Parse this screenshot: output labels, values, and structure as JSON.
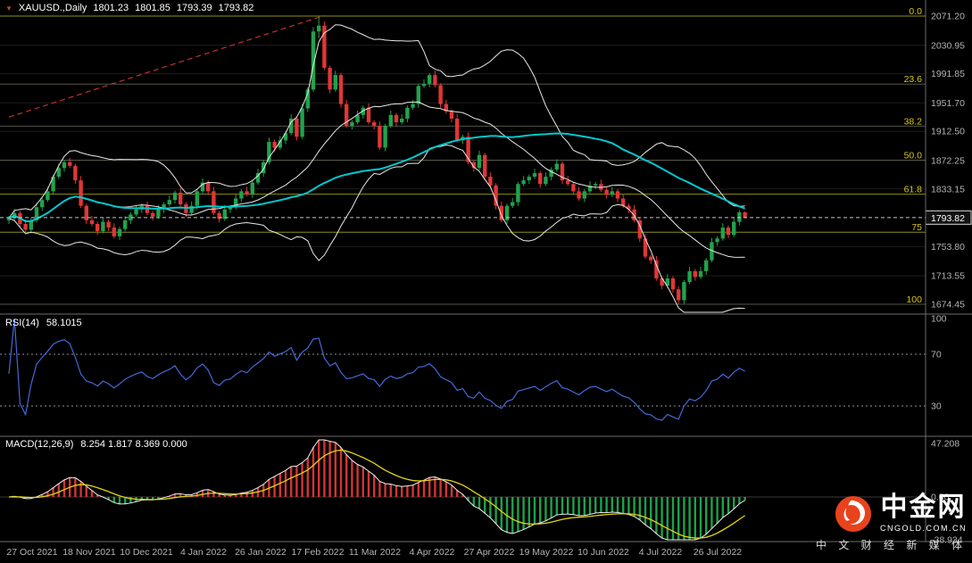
{
  "colors": {
    "background": "#000000",
    "candle_up": "#21a24b",
    "candle_down": "#e03636",
    "bollinger": "#e8e8e8",
    "ma_cyan": "#00c9cf",
    "rsi": "#4468d8",
    "macd_line": "#f0f0f0",
    "macd_signal": "#e3d411",
    "hist_up": "#d23535",
    "hist_down": "#1ea04a",
    "fib_label": "#d8c416",
    "axis_text": "#b4b4b4"
  },
  "header": {
    "symbol_period": "XAUUSD.,Daily",
    "open": "1801.23",
    "high": "1801.85",
    "low": "1793.39",
    "close": "1793.82"
  },
  "main_chart": {
    "price_axis_labels": [
      {
        "text": "2071.20",
        "price": 2071.2
      },
      {
        "text": "2030.95",
        "price": 2030.95
      },
      {
        "text": "1991.85",
        "price": 1991.85
      },
      {
        "text": "1951.70",
        "price": 1951.7
      },
      {
        "text": "1912.50",
        "price": 1912.5
      },
      {
        "text": "1872.25",
        "price": 1872.25
      },
      {
        "text": "1833.15",
        "price": 1833.15
      },
      {
        "text": "1753.80",
        "price": 1753.8
      },
      {
        "text": "1713.55",
        "price": 1713.55
      },
      {
        "text": "1674.45",
        "price": 1674.45
      }
    ],
    "current_price": {
      "text": "1793.82",
      "price": 1793.82
    },
    "fib_levels": [
      {
        "label": "0.0",
        "price": 2071.2,
        "emphasis": "yellow"
      },
      {
        "label": "23.6",
        "price": 1977.57,
        "emphasis": "gray"
      },
      {
        "label": "38.2",
        "price": 1919.64,
        "emphasis": "gray"
      },
      {
        "label": "50.0",
        "price": 1872.83,
        "emphasis": "gray"
      },
      {
        "label": "61.8",
        "price": 1826.01,
        "emphasis": "yellow"
      },
      {
        "label": "75",
        "price": 1773.64,
        "emphasis": "yellow"
      },
      {
        "label": "100",
        "price": 1674.45,
        "emphasis": "gray"
      }
    ]
  },
  "rsi": {
    "label": "RSI(14)",
    "value": "58.1015",
    "axis": [
      {
        "text": "100",
        "value": 100,
        "dashed": false
      },
      {
        "text": "70",
        "value": 70,
        "dashed": true
      },
      {
        "text": "30",
        "value": 30,
        "dashed": true
      }
    ]
  },
  "macd": {
    "label": "MACD(12,26,9)",
    "values": "8.254 1.817 8.369 0.000",
    "axis": [
      {
        "text": "47.208",
        "value": 47.208
      },
      {
        "text": "0.00",
        "value": 0
      },
      {
        "text": "-38.934",
        "value": -38.934
      }
    ]
  },
  "date_axis": [
    "27 Oct 2021",
    "18 Nov 2021",
    "10 Dec 2021",
    "4 Jan 2022",
    "26 Jan 2022",
    "17 Feb 2022",
    "11 Mar 2022",
    "4 Apr 2022",
    "27 Apr 2022",
    "19 May 2022",
    "10 Jun 2022",
    "4 Jul 2022",
    "26 Jul 2022"
  ],
  "watermark": {
    "brand": "中金网",
    "domain": "CNGOLD.COM.CN",
    "tagline": "中 文 财 经 新 媒 体"
  },
  "chart_data": {
    "type": "candlestick",
    "symbol": "XAUUSD",
    "timeframe": "Daily",
    "title": "XAUUSD Daily candlestick chart with Bollinger Bands, moving average, Fibonacci retracement, RSI(14) and MACD(12,26,9)",
    "last_ohlc": {
      "open": 1801.23,
      "high": 1801.85,
      "low": 1793.39,
      "close": 1793.82
    },
    "price_range_shown": [
      1674.45,
      2071.2
    ],
    "fibonacci": {
      "high": 2071.2,
      "low": 1674.45,
      "levels_percent": [
        0,
        23.6,
        38.2,
        50,
        61.8,
        75,
        100
      ]
    },
    "trendline": {
      "from_index": 0,
      "from_price": 1932,
      "to_index": 57,
      "to_price": 2072,
      "style": "dashed",
      "color": "#c03030"
    },
    "indicators": [
      {
        "name": "Bollinger Bands",
        "period": 20,
        "deviation": 2
      },
      {
        "name": "Moving Average",
        "period": 55
      },
      {
        "name": "RSI",
        "period": 14,
        "current": 58.1015
      },
      {
        "name": "MACD",
        "fast": 12,
        "slow": 26,
        "signal": 9,
        "current": [
          8.254,
          1.817,
          8.369,
          0.0
        ]
      }
    ],
    "ohlc": [
      [
        1790,
        1796,
        1785,
        1793
      ],
      [
        1793,
        1806,
        1790,
        1800
      ],
      [
        1800,
        1803,
        1780,
        1785
      ],
      [
        1785,
        1791,
        1774,
        1777
      ],
      [
        1777,
        1793,
        1772,
        1790
      ],
      [
        1790,
        1814,
        1787,
        1808
      ],
      [
        1808,
        1821,
        1803,
        1818
      ],
      [
        1818,
        1836,
        1815,
        1830
      ],
      [
        1830,
        1853,
        1825,
        1850
      ],
      [
        1850,
        1868,
        1847,
        1862
      ],
      [
        1862,
        1873,
        1857,
        1870
      ],
      [
        1870,
        1876,
        1862,
        1865
      ],
      [
        1865,
        1868,
        1840,
        1845
      ],
      [
        1845,
        1851,
        1807,
        1810
      ],
      [
        1810,
        1813,
        1785,
        1790
      ],
      [
        1790,
        1796,
        1782,
        1785
      ],
      [
        1785,
        1788,
        1770,
        1775
      ],
      [
        1775,
        1794,
        1772,
        1788
      ],
      [
        1788,
        1791,
        1775,
        1780
      ],
      [
        1780,
        1786,
        1765,
        1768
      ],
      [
        1768,
        1781,
        1763,
        1778
      ],
      [
        1778,
        1796,
        1775,
        1790
      ],
      [
        1790,
        1801,
        1785,
        1798
      ],
      [
        1798,
        1811,
        1795,
        1805
      ],
      [
        1805,
        1813,
        1800,
        1810
      ],
      [
        1810,
        1816,
        1797,
        1800
      ],
      [
        1800,
        1803,
        1790,
        1795
      ],
      [
        1795,
        1811,
        1792,
        1805
      ],
      [
        1805,
        1815,
        1800,
        1812
      ],
      [
        1812,
        1824,
        1809,
        1818
      ],
      [
        1818,
        1831,
        1813,
        1828
      ],
      [
        1828,
        1834,
        1809,
        1812
      ],
      [
        1812,
        1815,
        1795,
        1800
      ],
      [
        1800,
        1816,
        1797,
        1810
      ],
      [
        1810,
        1833,
        1805,
        1830
      ],
      [
        1830,
        1848,
        1827,
        1842
      ],
      [
        1842,
        1845,
        1825,
        1830
      ],
      [
        1830,
        1836,
        1797,
        1800
      ],
      [
        1800,
        1803,
        1787,
        1792
      ],
      [
        1792,
        1811,
        1789,
        1805
      ],
      [
        1805,
        1811,
        1800,
        1808
      ],
      [
        1808,
        1826,
        1805,
        1820
      ],
      [
        1820,
        1833,
        1815,
        1830
      ],
      [
        1830,
        1836,
        1823,
        1826
      ],
      [
        1826,
        1845,
        1821,
        1842
      ],
      [
        1842,
        1861,
        1839,
        1855
      ],
      [
        1855,
        1873,
        1850,
        1870
      ],
      [
        1870,
        1904,
        1867,
        1898
      ],
      [
        1898,
        1901,
        1885,
        1890
      ],
      [
        1890,
        1906,
        1887,
        1900
      ],
      [
        1900,
        1913,
        1895,
        1910
      ],
      [
        1910,
        1936,
        1907,
        1930
      ],
      [
        1930,
        1933,
        1900,
        1905
      ],
      [
        1905,
        1950,
        1902,
        1944
      ],
      [
        1944,
        1973,
        1939,
        1970
      ],
      [
        1970,
        2056,
        1967,
        2050
      ],
      [
        2050,
        2070,
        2040,
        2058
      ],
      [
        2058,
        2064,
        1997,
        2000
      ],
      [
        2000,
        2003,
        1965,
        1970
      ],
      [
        1970,
        1996,
        1967,
        1990
      ],
      [
        1990,
        1993,
        1945,
        1950
      ],
      [
        1950,
        1956,
        1917,
        1920
      ],
      [
        1920,
        1928,
        1915,
        1925
      ],
      [
        1925,
        1941,
        1922,
        1935
      ],
      [
        1935,
        1948,
        1930,
        1945
      ],
      [
        1945,
        1951,
        1922,
        1925
      ],
      [
        1925,
        1928,
        1915,
        1920
      ],
      [
        1920,
        1926,
        1887,
        1890
      ],
      [
        1890,
        1923,
        1885,
        1920
      ],
      [
        1920,
        1941,
        1917,
        1935
      ],
      [
        1935,
        1938,
        1920,
        1925
      ],
      [
        1925,
        1936,
        1922,
        1930
      ],
      [
        1930,
        1948,
        1925,
        1945
      ],
      [
        1945,
        1956,
        1942,
        1950
      ],
      [
        1950,
        1978,
        1945,
        1975
      ],
      [
        1975,
        1984,
        1972,
        1978
      ],
      [
        1978,
        1993,
        1973,
        1990
      ],
      [
        1990,
        1996,
        1973,
        1976
      ],
      [
        1976,
        1979,
        1945,
        1950
      ],
      [
        1950,
        1956,
        1937,
        1940
      ],
      [
        1940,
        1943,
        1925,
        1930
      ],
      [
        1930,
        1936,
        1897,
        1900
      ],
      [
        1900,
        1908,
        1895,
        1905
      ],
      [
        1905,
        1911,
        1867,
        1870
      ],
      [
        1870,
        1873,
        1857,
        1862
      ],
      [
        1862,
        1886,
        1859,
        1880
      ],
      [
        1880,
        1883,
        1845,
        1850
      ],
      [
        1850,
        1856,
        1835,
        1838
      ],
      [
        1838,
        1841,
        1805,
        1810
      ],
      [
        1810,
        1816,
        1787,
        1790
      ],
      [
        1790,
        1813,
        1785,
        1810
      ],
      [
        1810,
        1821,
        1807,
        1815
      ],
      [
        1815,
        1843,
        1810,
        1840
      ],
      [
        1840,
        1851,
        1837,
        1845
      ],
      [
        1845,
        1853,
        1840,
        1850
      ],
      [
        1850,
        1861,
        1847,
        1855
      ],
      [
        1855,
        1858,
        1835,
        1840
      ],
      [
        1840,
        1856,
        1837,
        1850
      ],
      [
        1850,
        1863,
        1845,
        1860
      ],
      [
        1860,
        1874,
        1857,
        1868
      ],
      [
        1868,
        1871,
        1840,
        1845
      ],
      [
        1845,
        1851,
        1837,
        1840
      ],
      [
        1840,
        1843,
        1825,
        1830
      ],
      [
        1830,
        1836,
        1817,
        1820
      ],
      [
        1820,
        1833,
        1815,
        1830
      ],
      [
        1830,
        1844,
        1827,
        1838
      ],
      [
        1838,
        1843,
        1833,
        1840
      ],
      [
        1840,
        1846,
        1829,
        1832
      ],
      [
        1832,
        1835,
        1820,
        1825
      ],
      [
        1825,
        1836,
        1822,
        1830
      ],
      [
        1830,
        1833,
        1815,
        1820
      ],
      [
        1820,
        1826,
        1807,
        1810
      ],
      [
        1810,
        1813,
        1800,
        1805
      ],
      [
        1805,
        1811,
        1787,
        1790
      ],
      [
        1790,
        1793,
        1760,
        1765
      ],
      [
        1765,
        1771,
        1737,
        1740
      ],
      [
        1740,
        1743,
        1730,
        1735
      ],
      [
        1735,
        1741,
        1707,
        1710
      ],
      [
        1710,
        1713,
        1695,
        1700
      ],
      [
        1700,
        1716,
        1697,
        1710
      ],
      [
        1710,
        1713,
        1690,
        1695
      ],
      [
        1695,
        1699,
        1675,
        1680
      ],
      [
        1680,
        1708,
        1675,
        1705
      ],
      [
        1705,
        1726,
        1702,
        1720
      ],
      [
        1720,
        1723,
        1707,
        1712
      ],
      [
        1712,
        1726,
        1709,
        1720
      ],
      [
        1720,
        1738,
        1715,
        1735
      ],
      [
        1735,
        1766,
        1732,
        1760
      ],
      [
        1760,
        1768,
        1755,
        1765
      ],
      [
        1765,
        1786,
        1762,
        1780
      ],
      [
        1780,
        1783,
        1765,
        1770
      ],
      [
        1770,
        1794,
        1767,
        1788
      ],
      [
        1788,
        1804,
        1783,
        1801
      ],
      [
        1801,
        1802,
        1793,
        1794
      ]
    ]
  }
}
